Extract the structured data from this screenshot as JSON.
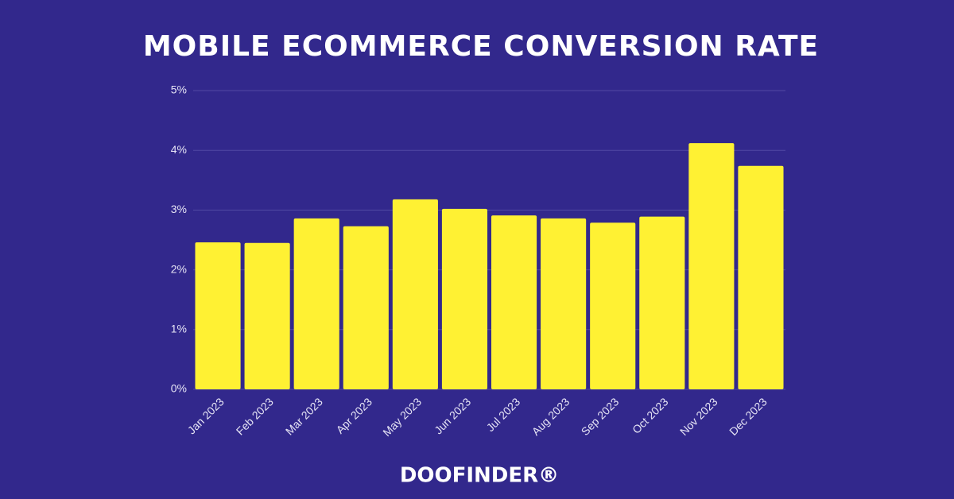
{
  "chart_data": {
    "type": "bar",
    "title": "MOBILE ECOMMERCE CONVERSION RATE",
    "categories": [
      "Jan 2023",
      "Feb 2023",
      "Mar 2023",
      "Apr 2023",
      "May 2023",
      "Jun 2023",
      "Jul 2023",
      "Aug 2023",
      "Sep 2023",
      "Oct 2023",
      "Nov 2023",
      "Dec 2023"
    ],
    "values": [
      2.46,
      2.45,
      2.86,
      2.73,
      3.18,
      3.02,
      2.91,
      2.86,
      2.79,
      2.89,
      4.12,
      3.74
    ],
    "color": "#fff133",
    "ylim": [
      0,
      5
    ],
    "yticks": [
      {
        "value": 0,
        "label": "0%"
      },
      {
        "value": 1,
        "label": "1%"
      },
      {
        "value": 2,
        "label": "2%"
      },
      {
        "value": 3,
        "label": "3%"
      },
      {
        "value": 4,
        "label": "4%"
      },
      {
        "value": 5,
        "label": "5%"
      }
    ],
    "grid": true
  },
  "brand": "DOOFINDER®"
}
